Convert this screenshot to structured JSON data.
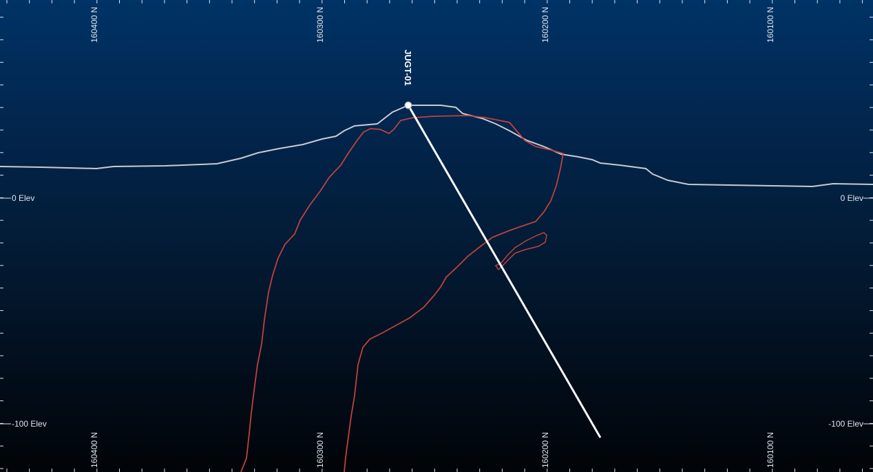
{
  "section": {
    "northing_labels_top": [
      "160400 N",
      "160300 N",
      "160200 N",
      "160100 N"
    ],
    "northing_labels_bottom": [
      "160400 N",
      "160300 N",
      "160200 N",
      "160100 N"
    ],
    "elevation_labels_left": [
      "0 Elev",
      "-100 Elev"
    ],
    "elevation_labels_right": [
      "0 Elev",
      "-100 Elev"
    ],
    "drillhole": {
      "name": "JUGT-01"
    },
    "colors": {
      "background_top": "#003366",
      "background_bottom": "#010408",
      "topography": "#c8ccd4",
      "ore_outline": "#c0413f",
      "drill_trace": "#ffffff",
      "axis": "#dfe6ee"
    }
  }
}
